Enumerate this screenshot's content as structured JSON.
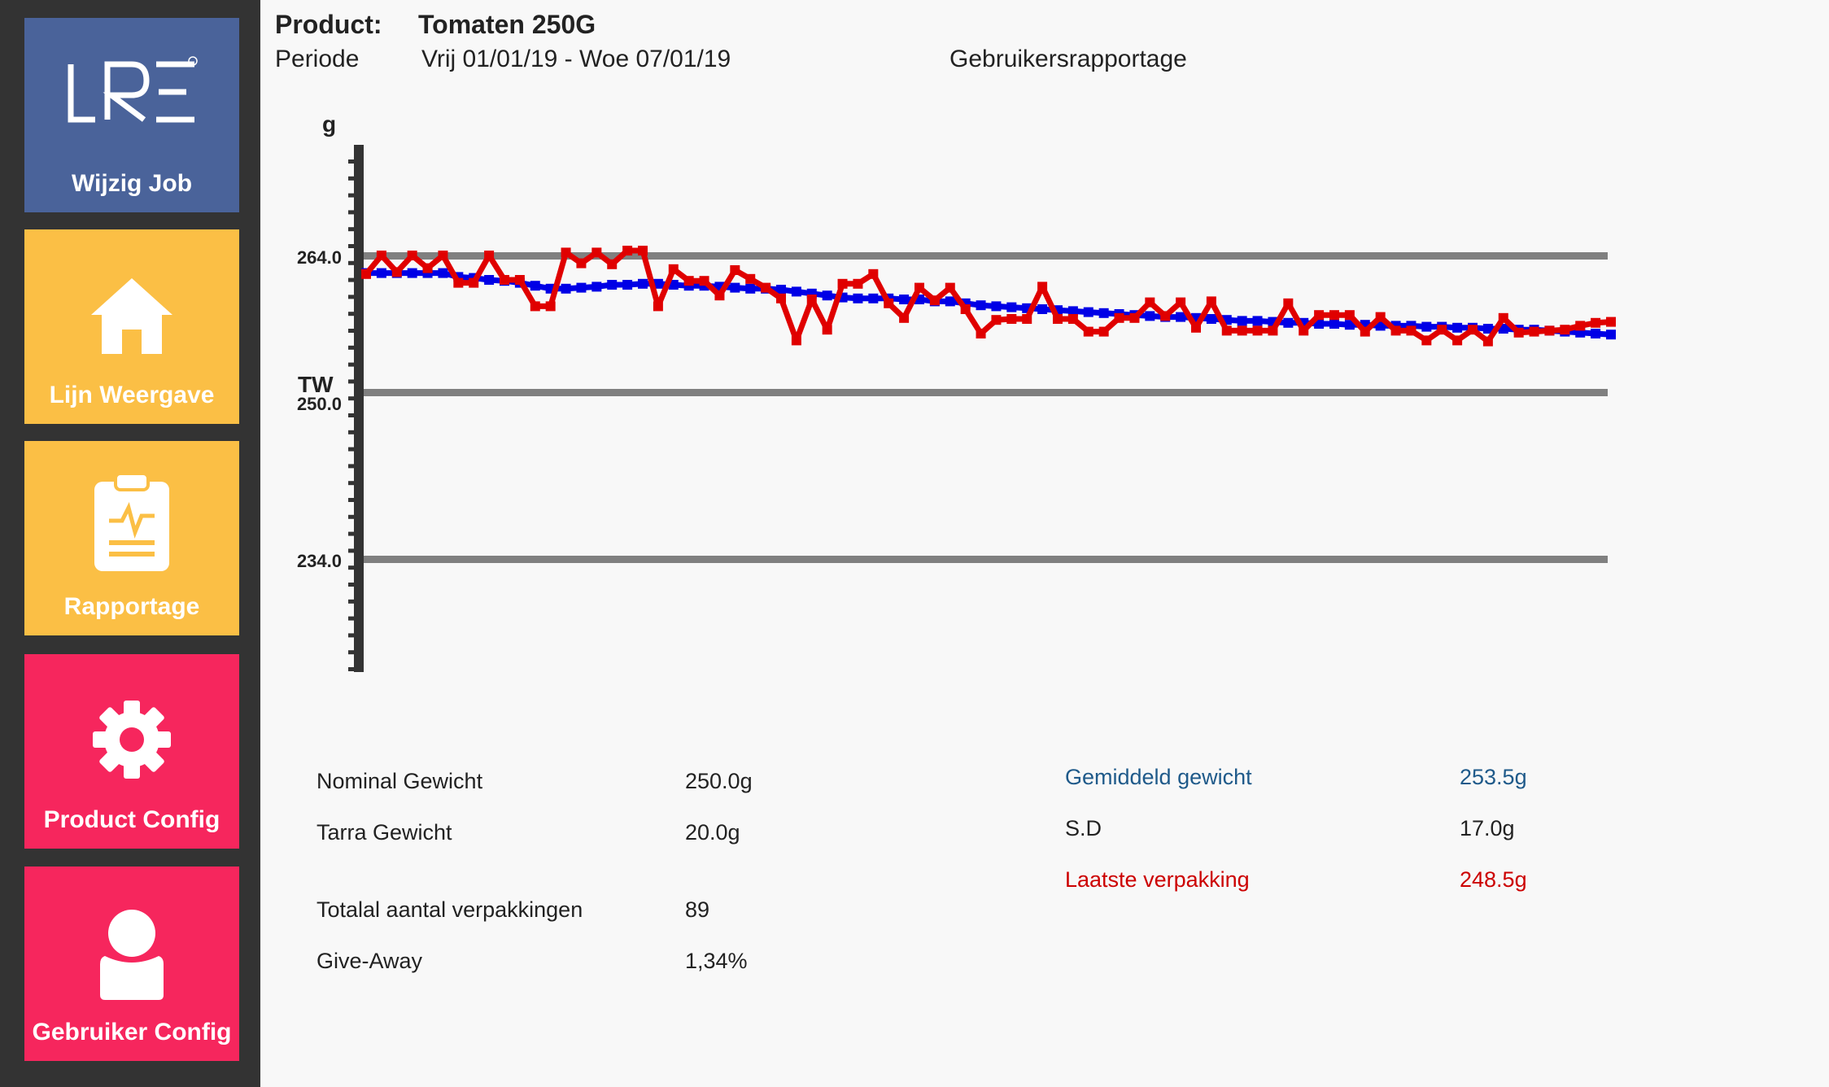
{
  "sidebar": {
    "items": [
      {
        "label": "Wijzig Job",
        "color": "#4a639a",
        "icon": "lre-logo-icon"
      },
      {
        "label": "Lijn Weergave",
        "color": "#fbbf45",
        "icon": "home-icon"
      },
      {
        "label": "Rapportage",
        "color": "#fbbf45",
        "icon": "clipboard-report-icon"
      },
      {
        "label": "Product Config",
        "color": "#f6265d",
        "icon": "gear-icon"
      },
      {
        "label": "Gebruiker Config",
        "color": "#f6265d",
        "icon": "user-icon"
      }
    ],
    "logo_text": "LRE"
  },
  "header": {
    "product_label": "Product:",
    "product_value": "Tomaten 250G",
    "period_label": "Periode",
    "period_value": "Vrij 01/01/19 - Woe 07/01/19",
    "report_type": "Gebruikersrapportage"
  },
  "chart_data": {
    "type": "line",
    "ylabel": "g",
    "yticks": [
      {
        "value": 264.0,
        "label": "264.0"
      },
      {
        "value": 250.0,
        "label": "250.0"
      },
      {
        "value": 234.0,
        "label": "234.0"
      }
    ],
    "tw_label": "TW",
    "ylim": [
      224,
      274
    ],
    "reference_lines": [
      264.0,
      250.0,
      234.0
    ],
    "grid": false,
    "series": [
      {
        "color": "#e00000",
        "values": [
          262.1,
          264.0,
          262.3,
          264.0,
          262.7,
          264.0,
          261.2,
          261.2,
          264.0,
          261.5,
          261.5,
          258.8,
          258.8,
          264.3,
          263.2,
          264.3,
          263.1,
          264.5,
          264.5,
          258.8,
          262.6,
          261.4,
          261.4,
          259.9,
          262.5,
          261.6,
          260.7,
          259.6,
          255.3,
          259.5,
          256.4,
          261.1,
          261.1,
          262.1,
          259.1,
          257.6,
          260.7,
          259.4,
          260.7,
          258.5,
          256.0,
          257.4,
          257.5,
          257.5,
          260.8,
          257.5,
          257.5,
          256.2,
          256.2,
          257.6,
          257.6,
          259.2,
          257.8,
          259.2,
          256.6,
          259.3,
          256.3,
          256.3,
          256.3,
          256.3,
          259.1,
          256.3,
          257.9,
          257.9,
          257.9,
          256.2,
          257.7,
          256.3,
          256.3,
          255.3,
          256.4,
          255.3,
          256.4,
          255.2,
          257.6,
          256.1,
          256.2,
          256.3,
          256.4,
          256.8,
          257.1,
          257.2
        ]
      },
      {
        "color": "#0000e6",
        "values": [
          262.2,
          262.2,
          262.2,
          262.2,
          262.2,
          262.2,
          261.8,
          261.7,
          261.5,
          261.4,
          261.2,
          260.9,
          260.6,
          260.6,
          260.7,
          260.8,
          261.0,
          261.0,
          261.1,
          261.1,
          261.0,
          260.9,
          260.9,
          260.8,
          260.7,
          260.6,
          260.6,
          260.5,
          260.3,
          260.1,
          259.9,
          259.7,
          259.6,
          259.6,
          259.6,
          259.5,
          259.5,
          259.3,
          259.3,
          259.1,
          258.9,
          258.8,
          258.7,
          258.6,
          258.5,
          258.4,
          258.3,
          258.2,
          258.1,
          258.0,
          257.9,
          257.8,
          257.7,
          257.7,
          257.6,
          257.5,
          257.4,
          257.3,
          257.3,
          257.2,
          257.1,
          257.1,
          257.0,
          257.0,
          256.9,
          256.9,
          256.8,
          256.8,
          256.8,
          256.7,
          256.7,
          256.6,
          256.6,
          256.5,
          256.5,
          256.4,
          256.4,
          256.3,
          256.2,
          256.1,
          256.0,
          255.9
        ]
      }
    ]
  },
  "stats_left": [
    {
      "label": "Nominal Gewicht",
      "value": "250.0g"
    },
    {
      "label": "Tarra Gewicht",
      "value": "20.0g"
    },
    {
      "label": "Totalal aantal verpakkingen",
      "value": "89"
    },
    {
      "label": "Give-Away",
      "value": "1,34%"
    }
  ],
  "stats_right": [
    {
      "label": "Gemiddeld gewicht",
      "value": "253.5g",
      "color": "#1f5a8a"
    },
    {
      "label": "S.D",
      "value": "17.0g",
      "color": "#222222"
    },
    {
      "label": "Laatste verpakking",
      "value": "248.5g",
      "color": "#cc0000"
    }
  ]
}
